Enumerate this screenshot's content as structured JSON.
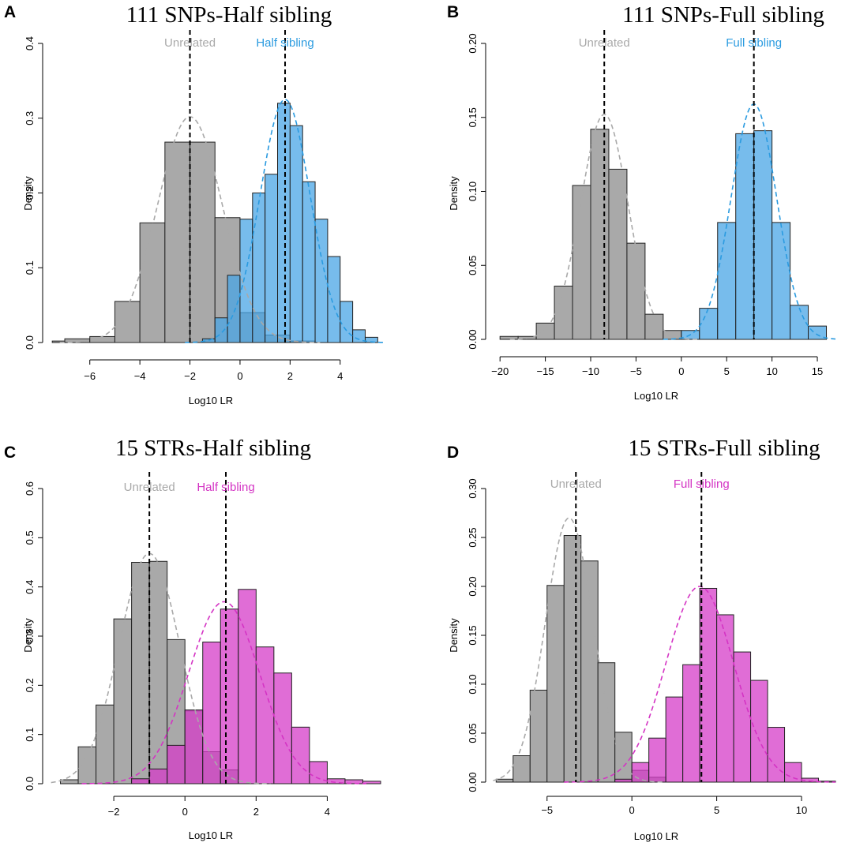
{
  "chart_data": [
    {
      "panel": "A",
      "type": "histogram",
      "title": "111 SNPs-Half sibling",
      "xlabel": "Log10 LR",
      "ylabel": "Density",
      "xlim": [
        -7.6,
        5.9
      ],
      "ylim": [
        0,
        0.4
      ],
      "xticks": [
        -6,
        -4,
        -2,
        0,
        2,
        4
      ],
      "yticks": [
        0.0,
        0.1,
        0.2,
        0.3,
        0.4
      ],
      "ytick_labels": [
        "0.0",
        "0.1",
        "0.2",
        "0.3",
        "0.4"
      ],
      "series": [
        {
          "name": "Unrelated",
          "color": "#a9a9a9",
          "label_color": "#a9a9a9",
          "curve_color": "#a9a9a9",
          "mean": -2.0,
          "edges": [
            -7.5,
            -7,
            -6,
            -5,
            -4,
            -3,
            -2,
            -1,
            0,
            1,
            2,
            3
          ],
          "values": [
            0.002,
            0.005,
            0.008,
            0.055,
            0.16,
            0.268,
            0.268,
            0.167,
            0.04,
            0.01,
            0.002
          ],
          "curve": {
            "mu": -2.0,
            "sd": 1.3,
            "peak": 0.302
          }
        },
        {
          "name": "Half sibling",
          "color": "#4aa6e5",
          "label_color": "#2b9be0",
          "curve_color": "#2b9be0",
          "mean": 1.8,
          "edges": [
            -1.5,
            -1,
            -0.5,
            0,
            0.5,
            1,
            1.5,
            2,
            2.5,
            3,
            3.5,
            4,
            4.5,
            5,
            5.5
          ],
          "values": [
            0.005,
            0.033,
            0.09,
            0.165,
            0.2,
            0.225,
            0.32,
            0.29,
            0.215,
            0.165,
            0.115,
            0.055,
            0.017,
            0.007
          ],
          "curve": {
            "mu": 1.8,
            "sd": 1.0,
            "peak": 0.325
          }
        }
      ]
    },
    {
      "panel": "B",
      "type": "histogram",
      "title": "111 SNPs-Full sibling",
      "xlabel": "Log10 LR",
      "ylabel": "Density",
      "xlim": [
        -20.8,
        17.0
      ],
      "ylim": [
        0,
        0.2
      ],
      "xticks": [
        -20,
        -15,
        -10,
        -5,
        0,
        5,
        10,
        15
      ],
      "yticks": [
        0.0,
        0.05,
        0.1,
        0.15,
        0.2
      ],
      "ytick_labels": [
        "0.00",
        "0.05",
        "0.10",
        "0.15",
        "0.20"
      ],
      "series": [
        {
          "name": "Unrelated",
          "color": "#a9a9a9",
          "label_color": "#a9a9a9",
          "curve_color": "#a9a9a9",
          "mean": -8.5,
          "edges": [
            -20,
            -18,
            -16,
            -14,
            -12,
            -10,
            -8,
            -6,
            -4,
            -2,
            0
          ],
          "values": [
            0.002,
            0.002,
            0.011,
            0.036,
            0.104,
            0.142,
            0.115,
            0.065,
            0.017,
            0.006
          ],
          "curve": {
            "mu": -8.5,
            "sd": 2.6,
            "peak": 0.152
          }
        },
        {
          "name": "Full sibling",
          "color": "#4aa6e5",
          "label_color": "#2b9be0",
          "curve_color": "#2b9be0",
          "mean": 8.0,
          "edges": [
            0,
            2,
            4,
            6,
            8,
            10,
            12,
            14,
            16
          ],
          "values": [
            0.006,
            0.021,
            0.079,
            0.139,
            0.141,
            0.079,
            0.023,
            0.009
          ],
          "curve": {
            "mu": 8.0,
            "sd": 2.5,
            "peak": 0.159
          }
        }
      ]
    },
    {
      "panel": "C",
      "type": "histogram",
      "title": "15 STRs-Half sibling",
      "xlabel": "Log10 LR",
      "ylabel": "Density",
      "xlim": [
        -3.8,
        5.7
      ],
      "ylim": [
        0,
        0.6
      ],
      "xticks": [
        -2,
        0,
        2,
        4
      ],
      "yticks": [
        0.0,
        0.1,
        0.2,
        0.3,
        0.4,
        0.5,
        0.6
      ],
      "ytick_labels": [
        "0.0",
        "0.1",
        "0.2",
        "0.3",
        "0.4",
        "0.5",
        "0.6"
      ],
      "series": [
        {
          "name": "Unrelated",
          "color": "#a9a9a9",
          "label_color": "#a9a9a9",
          "curve_color": "#a9a9a9",
          "mean": -1.0,
          "edges": [
            -3.5,
            -3,
            -2.5,
            -2,
            -1.5,
            -1,
            -0.5,
            0,
            0.5,
            1,
            1.5
          ],
          "values": [
            0.008,
            0.075,
            0.16,
            0.335,
            0.45,
            0.452,
            0.293,
            0.148,
            0.065,
            0.028
          ],
          "curve": {
            "mu": -1.0,
            "sd": 0.85,
            "peak": 0.468
          }
        },
        {
          "name": "Half sibling",
          "color": "#d63cc8",
          "label_color": "#d434c4",
          "curve_color": "#d434c4",
          "mean": 1.15,
          "edges": [
            -1.5,
            -1,
            -0.5,
            0,
            0.5,
            1,
            1.5,
            2,
            2.5,
            3,
            3.5,
            4,
            4.5,
            5,
            5.5
          ],
          "values": [
            0.01,
            0.03,
            0.078,
            0.15,
            0.288,
            0.355,
            0.395,
            0.278,
            0.225,
            0.115,
            0.045,
            0.01,
            0.008,
            0.005
          ],
          "curve": {
            "mu": 1.1,
            "sd": 1.0,
            "peak": 0.37
          }
        }
      ]
    },
    {
      "panel": "D",
      "type": "histogram",
      "title": "15 STRs-Full sibling",
      "xlabel": "Log10 LR",
      "ylabel": "Density",
      "xlim": [
        -8.2,
        12.0
      ],
      "ylim": [
        0,
        0.3
      ],
      "xticks": [
        -5,
        0,
        5,
        10
      ],
      "yticks": [
        0.0,
        0.05,
        0.1,
        0.15,
        0.2,
        0.25,
        0.3
      ],
      "ytick_labels": [
        "0.00",
        "0.05",
        "0.10",
        "0.15",
        "0.20",
        "0.25",
        "0.30"
      ],
      "series": [
        {
          "name": "Unrelated",
          "color": "#a9a9a9",
          "label_color": "#a9a9a9",
          "curve_color": "#a9a9a9",
          "mean": -3.3,
          "edges": [
            -8,
            -7,
            -6,
            -5,
            -4,
            -3,
            -2,
            -1,
            0,
            1,
            2
          ],
          "values": [
            0.003,
            0.027,
            0.094,
            0.201,
            0.252,
            0.226,
            0.122,
            0.051,
            0.012,
            0.005
          ],
          "curve": {
            "mu": -3.7,
            "sd": 1.4,
            "peak": 0.27
          }
        },
        {
          "name": "Full sibling",
          "color": "#d63cc8",
          "label_color": "#d434c4",
          "curve_color": "#d434c4",
          "mean": 4.1,
          "edges": [
            -1,
            0,
            1,
            2,
            3,
            4,
            5,
            6,
            7,
            8,
            9,
            10,
            11,
            12
          ],
          "values": [
            0.003,
            0.02,
            0.045,
            0.087,
            0.12,
            0.198,
            0.171,
            0.133,
            0.104,
            0.056,
            0.02,
            0.004,
            0.001
          ],
          "curve": {
            "mu": 4.0,
            "sd": 2.0,
            "peak": 0.2
          }
        }
      ]
    }
  ]
}
